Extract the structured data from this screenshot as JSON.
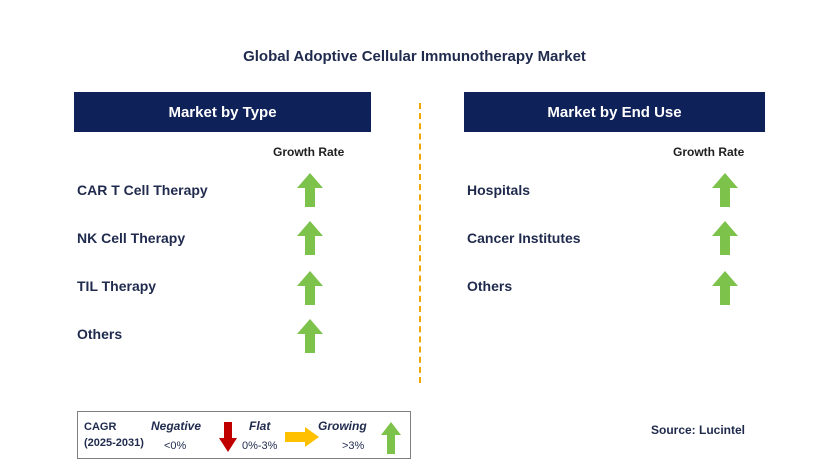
{
  "title": "Global Adoptive Cellular Immunotherapy Market",
  "left_panel": {
    "header": "Market by Type",
    "growth_label": "Growth Rate",
    "rows": [
      "CAR T Cell Therapy",
      "NK Cell Therapy",
      "TIL Therapy",
      "Others"
    ],
    "trend": "growing"
  },
  "right_panel": {
    "header": "Market by End Use",
    "growth_label": "Growth Rate",
    "rows": [
      "Hospitals",
      "Cancer Institutes",
      "Others"
    ],
    "trend": "growing"
  },
  "legend": {
    "cagr_label": "CAGR",
    "period": "(2025-2031)",
    "negative_label": "Negative",
    "negative_value": "<0%",
    "flat_label": "Flat",
    "flat_value": "0%-3%",
    "growing_label": "Growing",
    "growing_value": ">3%"
  },
  "source": "Source: Lucintel",
  "colors": {
    "header_bg": "#0e2159",
    "growing_arrow": "#7dc24b",
    "negative_arrow": "#c00000",
    "flat_arrow": "#ffc000",
    "divider": "#f0a500"
  }
}
